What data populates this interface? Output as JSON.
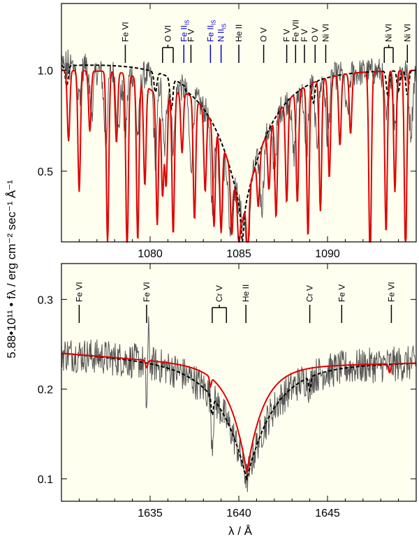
{
  "colors": {
    "background": "#fffff0",
    "observed": "#555555",
    "model_red": "#e00000",
    "model_dashed": "#000000",
    "ism_blue": "#0000cc"
  },
  "ylabel": "5.88•10¹¹ • fλ / erg cm⁻² sec⁻¹ Å⁻¹",
  "xlabel": "λ / Å",
  "chart_data": [
    {
      "type": "line",
      "id": "top",
      "xlim": [
        1075,
        1095
      ],
      "ylim": [
        0.15,
        1.33
      ],
      "xticks": [
        1080,
        1085,
        1090
      ],
      "xtick_labels": [
        "1080",
        "1085",
        "1090"
      ],
      "yticks": [
        0.5,
        1.0
      ],
      "ytick_labels": [
        "0.5",
        "1.0"
      ],
      "continuum": 1.0,
      "broad_line": {
        "center": 1085.2,
        "depth": 0.75,
        "width": 1.6
      },
      "observed_absorption": [
        {
          "x": 1076.0,
          "depth": 0.15
        },
        {
          "x": 1076.7,
          "depth": 0.2
        },
        {
          "x": 1077.5,
          "depth": 0.35
        },
        {
          "x": 1078.2,
          "depth": 0.3
        },
        {
          "x": 1078.6,
          "depth": 0.3
        },
        {
          "x": 1079.3,
          "depth": 0.3
        },
        {
          "x": 1080.3,
          "depth": 0.4
        },
        {
          "x": 1080.8,
          "depth": 0.35
        },
        {
          "x": 1081.3,
          "depth": 0.3
        },
        {
          "x": 1082.3,
          "depth": 0.35
        },
        {
          "x": 1083.5,
          "depth": 0.4
        },
        {
          "x": 1084.0,
          "depth": 0.4
        },
        {
          "x": 1084.5,
          "depth": 0.3
        },
        {
          "x": 1085.5,
          "depth": 0.3
        },
        {
          "x": 1086.3,
          "depth": 0.3
        },
        {
          "x": 1087.0,
          "depth": 0.25
        },
        {
          "x": 1088.1,
          "depth": 0.3
        },
        {
          "x": 1088.8,
          "depth": 0.35
        },
        {
          "x": 1089.4,
          "depth": 0.3
        },
        {
          "x": 1090.0,
          "depth": 0.3
        },
        {
          "x": 1091.1,
          "depth": 0.2
        },
        {
          "x": 1093.3,
          "depth": 0.25
        },
        {
          "x": 1093.8,
          "depth": 0.25
        },
        {
          "x": 1094.7,
          "depth": 0.3
        }
      ],
      "red_absorption": [
        {
          "x": 1075.4,
          "depth": 0.35
        },
        {
          "x": 1076.0,
          "depth": 0.6
        },
        {
          "x": 1076.6,
          "depth": 0.3
        },
        {
          "x": 1077.6,
          "depth": 0.85
        },
        {
          "x": 1078.1,
          "depth": 0.35
        },
        {
          "x": 1078.7,
          "depth": 0.9
        },
        {
          "x": 1079.3,
          "depth": 0.8
        },
        {
          "x": 1079.7,
          "depth": 0.5
        },
        {
          "x": 1080.4,
          "depth": 0.65
        },
        {
          "x": 1080.7,
          "depth": 0.5
        },
        {
          "x": 1080.9,
          "depth": 0.45
        },
        {
          "x": 1081.3,
          "depth": 0.7
        },
        {
          "x": 1081.8,
          "depth": 0.3
        },
        {
          "x": 1082.5,
          "depth": 0.6
        },
        {
          "x": 1083.1,
          "depth": 0.4
        },
        {
          "x": 1083.6,
          "depth": 0.5
        },
        {
          "x": 1084.0,
          "depth": 0.45
        },
        {
          "x": 1084.6,
          "depth": 0.3
        },
        {
          "x": 1085.0,
          "depth": 0.2
        },
        {
          "x": 1085.5,
          "depth": 0.3
        },
        {
          "x": 1086.1,
          "depth": 0.25
        },
        {
          "x": 1086.7,
          "depth": 0.3
        },
        {
          "x": 1087.1,
          "depth": 0.5
        },
        {
          "x": 1087.7,
          "depth": 0.5
        },
        {
          "x": 1088.3,
          "depth": 0.55
        },
        {
          "x": 1088.9,
          "depth": 0.75
        },
        {
          "x": 1089.6,
          "depth": 0.65
        },
        {
          "x": 1090.1,
          "depth": 0.5
        },
        {
          "x": 1090.7,
          "depth": 0.35
        },
        {
          "x": 1091.3,
          "depth": 0.3
        },
        {
          "x": 1092.4,
          "depth": 0.95
        },
        {
          "x": 1093.3,
          "depth": 0.8
        },
        {
          "x": 1093.8,
          "depth": 0.6
        },
        {
          "x": 1094.4,
          "depth": 0.9
        }
      ],
      "dashed_absorption": [
        {
          "x": 1075.3,
          "depth": 0.1
        },
        {
          "x": 1080.3,
          "depth": 0.1
        },
        {
          "x": 1081.2,
          "depth": 0.15
        },
        {
          "x": 1085.2,
          "depth": 0.1
        },
        {
          "x": 1089.2,
          "depth": 0.1
        },
        {
          "x": 1093.4,
          "depth": 0.12
        },
        {
          "x": 1094.0,
          "depth": 0.1
        },
        {
          "x": 1094.5,
          "depth": 0.12
        }
      ],
      "line_ids": [
        {
          "label": "Fe VI",
          "x": 1078.6,
          "color": "#000000"
        },
        {
          "label": "O VI",
          "xs": [
            1080.7,
            1081.3
          ],
          "color": "#000000"
        },
        {
          "label": "Fe II",
          "sub": "IS",
          "x": 1081.9,
          "color": "#0000cc"
        },
        {
          "label": "F V",
          "x": 1082.3,
          "color": "#000000"
        },
        {
          "label": "Fe II",
          "sub": "IS",
          "x": 1083.4,
          "color": "#0000cc"
        },
        {
          "label": "N II",
          "sub": "IS",
          "x": 1084.0,
          "color": "#0000cc"
        },
        {
          "label": "He II",
          "x": 1085.0,
          "color": "#000000"
        },
        {
          "label": "O V",
          "x": 1086.4,
          "color": "#000000"
        },
        {
          "label": "F V",
          "x": 1087.7,
          "color": "#000000"
        },
        {
          "label": "Fe VII",
          "x": 1088.2,
          "color": "#000000"
        },
        {
          "label": "F V",
          "x": 1088.7,
          "color": "#000000"
        },
        {
          "label": "O V",
          "x": 1089.3,
          "color": "#000000"
        },
        {
          "label": "Ni VI",
          "x": 1089.9,
          "color": "#000000"
        },
        {
          "label": "Ni VI",
          "xs": [
            1093.2,
            1093.7
          ],
          "color": "#000000"
        },
        {
          "label": "Ni VI",
          "x": 1094.5,
          "color": "#000000"
        }
      ]
    },
    {
      "type": "line",
      "id": "bottom",
      "xlim": [
        1630,
        1650
      ],
      "ylim": [
        0.075,
        0.34
      ],
      "xticks": [
        1635,
        1640,
        1645
      ],
      "xtick_labels": [
        "1635",
        "1640",
        "1645"
      ],
      "yticks": [
        0.1,
        0.2,
        0.3
      ],
      "ytick_labels": [
        "0.1",
        "0.2",
        "0.3"
      ],
      "continuum": 0.24,
      "line_ids": [
        {
          "label": "Fe VI",
          "x": 1631.0,
          "color": "#000000"
        },
        {
          "label": "Fe VI",
          "x": 1634.8,
          "color": "#000000"
        },
        {
          "label": "Cr V",
          "xs": [
            1638.5,
            1639.3
          ],
          "color": "#000000"
        },
        {
          "label": "He II",
          "x": 1640.4,
          "color": "#000000"
        },
        {
          "label": "Cr V",
          "x": 1644.0,
          "color": "#000000"
        },
        {
          "label": "Fe V",
          "x": 1645.8,
          "color": "#000000"
        },
        {
          "label": "Fe VI",
          "x": 1648.6,
          "color": "#000000"
        }
      ]
    }
  ]
}
